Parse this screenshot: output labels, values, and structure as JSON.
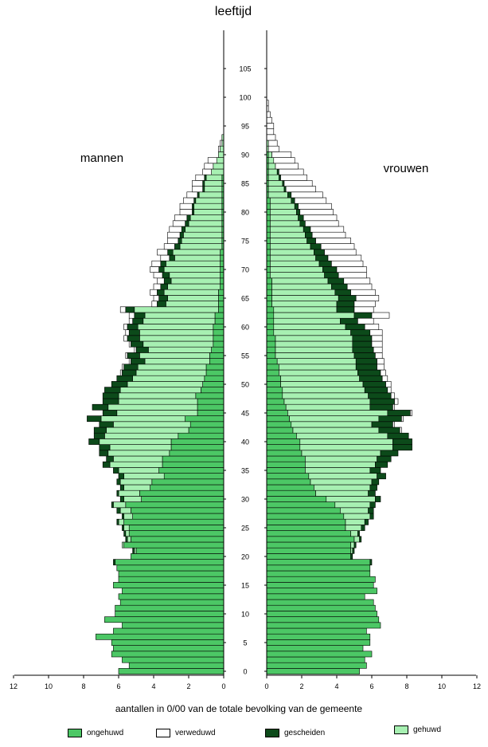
{
  "chart_data": {
    "type": "bar",
    "orientation": "horizontal-mirrored (population pyramid)",
    "title": "leeftijd",
    "xlabel": "aantallen in 0/00 van de totale bevolking van de gemeente",
    "left_label": "mannen",
    "right_label": "vrouwen",
    "xlim": [
      0,
      12
    ],
    "x_ticks": [
      "12",
      "10",
      "8",
      "6",
      "4",
      "2",
      "0",
      "2",
      "4",
      "6",
      "8",
      "10",
      "12"
    ],
    "age_ticks": [
      "0",
      "5",
      "10",
      "15",
      "20",
      "25",
      "30",
      "35",
      "40",
      "45",
      "50",
      "55",
      "60",
      "65",
      "70",
      "75",
      "80",
      "85",
      "90",
      "95",
      "100",
      "105"
    ],
    "categories_order": [
      "ongehuwd",
      "gehuwd",
      "gescheiden",
      "verweduwd"
    ],
    "legend": [
      {
        "key": "ongehuwd",
        "label": "ongehuwd",
        "color": "#4cc765"
      },
      {
        "key": "verweduwd",
        "label": "verweduwd",
        "color": "#ffffff"
      },
      {
        "key": "gescheiden",
        "label": "gescheiden",
        "color": "#0c4a1a"
      },
      {
        "key": "gehuwd",
        "label": "gehuwd",
        "color": "#a7f0b2"
      }
    ],
    "ages": [
      0,
      1,
      2,
      3,
      4,
      5,
      6,
      7,
      8,
      9,
      10,
      11,
      12,
      13,
      14,
      15,
      16,
      17,
      18,
      19,
      20,
      21,
      22,
      23,
      24,
      25,
      26,
      27,
      28,
      29,
      30,
      31,
      32,
      33,
      34,
      35,
      36,
      37,
      38,
      39,
      40,
      41,
      42,
      43,
      44,
      45,
      46,
      47,
      48,
      49,
      50,
      51,
      52,
      53,
      54,
      55,
      56,
      57,
      58,
      59,
      60,
      61,
      62,
      63,
      64,
      65,
      66,
      67,
      68,
      69,
      70,
      71,
      72,
      73,
      74,
      75,
      76,
      77,
      78,
      79,
      80,
      81,
      82,
      83,
      84,
      85,
      86,
      87,
      88,
      89,
      90,
      91,
      92,
      93,
      94,
      95,
      96,
      97,
      98,
      99
    ],
    "men": {
      "ongehuwd": [
        6.0,
        5.4,
        5.8,
        6.4,
        6.3,
        6.4,
        7.3,
        6.3,
        5.8,
        6.8,
        6.2,
        6.2,
        5.9,
        6.0,
        5.8,
        6.3,
        6.0,
        6.0,
        6.1,
        6.2,
        5.3,
        5.0,
        5.7,
        5.3,
        5.4,
        5.4,
        5.7,
        5.2,
        5.3,
        5.6,
        4.7,
        4.8,
        4.2,
        4.1,
        3.4,
        3.7,
        3.5,
        3.5,
        3.1,
        3.0,
        3.0,
        2.6,
        2.0,
        1.9,
        2.2,
        1.5,
        1.5,
        1.5,
        1.6,
        1.3,
        1.2,
        1.1,
        1.0,
        1.0,
        0.8,
        0.8,
        0.7,
        0.6,
        0.6,
        0.6,
        0.6,
        0.5,
        0.5,
        0.3,
        0.3,
        0.3,
        0.3,
        0.2,
        0.2,
        0.2,
        0.2,
        0.2,
        0.2,
        0.2,
        0.1,
        0.1,
        0.1,
        0.1,
        0.1,
        0.1,
        0.1,
        0.1,
        0.1,
        0.1,
        0.1,
        0.1,
        0.1,
        0.0,
        0.0,
        0.0,
        0.0,
        0.0,
        0.0,
        0.0,
        0.0,
        0.0,
        0.0,
        0.0,
        0.0,
        0.0
      ],
      "gehuwd": [
        0.0,
        0.0,
        0.0,
        0.0,
        0.0,
        0.0,
        0.0,
        0.0,
        0.0,
        0.0,
        0.0,
        0.0,
        0.0,
        0.0,
        0.0,
        0.0,
        0.0,
        0.0,
        0.0,
        0.0,
        0.0,
        0.1,
        0.1,
        0.2,
        0.2,
        0.3,
        0.3,
        0.5,
        0.6,
        0.7,
        1.0,
        1.2,
        1.5,
        1.8,
        2.3,
        2.3,
        3.0,
        2.8,
        3.5,
        3.5,
        4.1,
        4.2,
        4.7,
        4.4,
        4.8,
        4.6,
        5.1,
        4.5,
        4.4,
        4.6,
        4.3,
        4.1,
        4.0,
        3.9,
        3.7,
        4.0,
        3.6,
        4.0,
        4.2,
        4.2,
        4.3,
        4.1,
        4.0,
        4.8,
        3.0,
        2.9,
        3.1,
        3.0,
        2.8,
        2.9,
        3.2,
        3.1,
        2.6,
        2.7,
        2.4,
        2.3,
        2.2,
        2.1,
        1.9,
        1.8,
        1.6,
        1.6,
        1.5,
        1.3,
        1.0,
        1.0,
        0.9,
        0.7,
        0.6,
        0.4,
        0.3,
        0.2,
        0.1,
        0.1,
        0.0,
        0.0,
        0.0,
        0.0,
        0.0,
        0.0
      ],
      "gescheiden": [
        0.0,
        0.0,
        0.0,
        0.0,
        0.0,
        0.0,
        0.0,
        0.0,
        0.0,
        0.0,
        0.0,
        0.0,
        0.0,
        0.0,
        0.0,
        0.0,
        0.0,
        0.0,
        0.0,
        0.1,
        0.0,
        0.1,
        0.0,
        0.1,
        0.1,
        0.1,
        0.1,
        0.1,
        0.2,
        0.1,
        0.2,
        0.1,
        0.2,
        0.2,
        0.3,
        0.3,
        0.4,
        0.4,
        0.5,
        0.6,
        0.6,
        0.6,
        0.7,
        0.8,
        0.8,
        0.8,
        0.9,
        0.9,
        0.9,
        0.9,
        0.9,
        0.9,
        0.8,
        0.8,
        0.8,
        0.7,
        0.7,
        0.7,
        0.7,
        0.6,
        0.6,
        0.6,
        0.6,
        0.5,
        0.5,
        0.5,
        0.4,
        0.4,
        0.4,
        0.4,
        0.3,
        0.3,
        0.3,
        0.3,
        0.3,
        0.2,
        0.2,
        0.2,
        0.2,
        0.2,
        0.1,
        0.1,
        0.1,
        0.1,
        0.1,
        0.1,
        0.1,
        0.0,
        0.0,
        0.0,
        0.0,
        0.0,
        0.0,
        0.0,
        0.0,
        0.0,
        0.0,
        0.0,
        0.0,
        0.0
      ],
      "verweduwd": [
        0.0,
        0.0,
        0.0,
        0.0,
        0.0,
        0.0,
        0.0,
        0.0,
        0.0,
        0.0,
        0.0,
        0.0,
        0.0,
        0.0,
        0.0,
        0.0,
        0.0,
        0.0,
        0.0,
        0.0,
        0.0,
        0.0,
        0.0,
        0.0,
        0.0,
        0.0,
        0.0,
        0.0,
        0.0,
        0.0,
        0.0,
        0.0,
        0.0,
        0.0,
        0.0,
        0.0,
        0.0,
        0.0,
        0.0,
        0.0,
        0.0,
        0.0,
        0.0,
        0.0,
        0.0,
        0.0,
        0.0,
        0.0,
        0.0,
        0.0,
        0.0,
        0.0,
        0.1,
        0.1,
        0.1,
        0.1,
        0.1,
        0.1,
        0.2,
        0.2,
        0.2,
        0.2,
        0.3,
        0.3,
        0.3,
        0.3,
        0.4,
        0.4,
        0.4,
        0.5,
        0.5,
        0.5,
        0.5,
        0.6,
        0.6,
        0.6,
        0.7,
        0.7,
        0.7,
        0.7,
        0.7,
        0.7,
        0.6,
        0.6,
        0.6,
        0.6,
        0.5,
        0.5,
        0.5,
        0.5,
        0.0,
        0.1,
        0.1,
        0.0,
        0.0,
        0.0,
        0.0,
        0.0,
        0.0,
        0.0
      ]
    },
    "women": {
      "ongehuwd": [
        5.3,
        5.7,
        5.6,
        6.0,
        5.5,
        5.9,
        5.9,
        5.7,
        6.5,
        6.4,
        6.3,
        6.2,
        6.1,
        5.6,
        6.3,
        6.1,
        6.2,
        5.9,
        5.9,
        5.9,
        4.8,
        4.8,
        4.8,
        5.0,
        4.8,
        4.5,
        4.5,
        4.4,
        4.2,
        3.9,
        3.4,
        2.8,
        2.7,
        2.5,
        2.4,
        2.2,
        2.2,
        2.2,
        2.0,
        1.9,
        1.9,
        1.7,
        1.5,
        1.4,
        1.3,
        1.2,
        1.1,
        1.0,
        0.9,
        0.9,
        0.8,
        0.8,
        0.7,
        0.7,
        0.6,
        0.5,
        0.5,
        0.5,
        0.5,
        0.4,
        0.4,
        0.4,
        0.4,
        0.4,
        0.3,
        0.3,
        0.3,
        0.3,
        0.3,
        0.2,
        0.2,
        0.2,
        0.2,
        0.2,
        0.2,
        0.2,
        0.2,
        0.2,
        0.2,
        0.2,
        0.2,
        0.2,
        0.2,
        0.1,
        0.1,
        0.1,
        0.1,
        0.1,
        0.1,
        0.1,
        0.1,
        0.0,
        0.0,
        0.0,
        0.0,
        0.0,
        0.0,
        0.0,
        0.0,
        0.0
      ],
      "gehuwd": [
        0.0,
        0.0,
        0.0,
        0.0,
        0.0,
        0.0,
        0.0,
        0.0,
        0.0,
        0.0,
        0.0,
        0.0,
        0.0,
        0.0,
        0.0,
        0.0,
        0.0,
        0.0,
        0.0,
        0.0,
        0.0,
        0.1,
        0.2,
        0.3,
        0.4,
        0.9,
        1.1,
        1.5,
        1.6,
        2.0,
        2.8,
        3.0,
        3.2,
        3.5,
        3.9,
        3.7,
        4.0,
        4.1,
        4.5,
        5.3,
        5.3,
        5.2,
        4.9,
        4.6,
        5.1,
        5.7,
        4.8,
        4.9,
        4.9,
        4.7,
        4.7,
        4.5,
        4.5,
        4.4,
        4.5,
        4.5,
        4.4,
        4.4,
        4.4,
        4.4,
        4.1,
        3.8,
        4.6,
        3.6,
        3.7,
        3.8,
        3.6,
        3.4,
        3.2,
        3.1,
        3.0,
        2.8,
        2.6,
        2.5,
        2.3,
        2.1,
        2.0,
        1.9,
        1.7,
        1.6,
        1.5,
        1.4,
        1.2,
        1.1,
        0.9,
        0.8,
        0.6,
        0.5,
        0.4,
        0.3,
        0.2,
        0.1,
        0.1,
        0.0,
        0.0,
        0.0,
        0.0,
        0.0,
        0.0,
        0.0
      ],
      "gescheiden": [
        0.0,
        0.0,
        0.0,
        0.0,
        0.0,
        0.0,
        0.0,
        0.0,
        0.0,
        0.0,
        0.0,
        0.0,
        0.0,
        0.0,
        0.0,
        0.0,
        0.0,
        0.0,
        0.0,
        0.1,
        0.1,
        0.1,
        0.1,
        0.1,
        0.1,
        0.2,
        0.2,
        0.2,
        0.3,
        0.3,
        0.3,
        0.4,
        0.4,
        0.4,
        0.5,
        0.6,
        0.7,
        0.8,
        1.0,
        1.1,
        1.1,
        1.2,
        1.2,
        1.2,
        1.3,
        1.3,
        1.3,
        1.4,
        1.3,
        1.3,
        1.3,
        1.3,
        1.3,
        1.2,
        1.2,
        1.2,
        1.2,
        1.1,
        1.1,
        1.1,
        1.1,
        1.0,
        1.0,
        1.0,
        1.0,
        1.0,
        0.9,
        0.9,
        0.9,
        0.8,
        0.8,
        0.7,
        0.7,
        0.6,
        0.6,
        0.5,
        0.4,
        0.4,
        0.3,
        0.3,
        0.2,
        0.2,
        0.2,
        0.2,
        0.1,
        0.1,
        0.1,
        0.1,
        0.0,
        0.0,
        0.0,
        0.0,
        0.0,
        0.0,
        0.0,
        0.0,
        0.0,
        0.0,
        0.0,
        0.0
      ],
      "verweduwd": [
        0.0,
        0.0,
        0.0,
        0.0,
        0.0,
        0.0,
        0.0,
        0.0,
        0.0,
        0.0,
        0.0,
        0.0,
        0.0,
        0.0,
        0.0,
        0.0,
        0.0,
        0.0,
        0.0,
        0.0,
        0.0,
        0.0,
        0.0,
        0.0,
        0.0,
        0.0,
        0.0,
        0.0,
        0.0,
        0.0,
        0.0,
        0.0,
        0.0,
        0.0,
        0.0,
        0.0,
        0.0,
        0.0,
        0.0,
        0.0,
        0.0,
        0.0,
        0.1,
        0.1,
        0.1,
        0.1,
        0.1,
        0.2,
        0.2,
        0.2,
        0.3,
        0.3,
        0.3,
        0.4,
        0.4,
        0.4,
        0.5,
        0.6,
        0.6,
        0.7,
        0.8,
        0.9,
        1.0,
        1.1,
        1.2,
        1.3,
        1.4,
        1.4,
        1.5,
        1.6,
        1.7,
        1.8,
        1.9,
        1.8,
        1.9,
        2.0,
        1.9,
        1.9,
        1.9,
        1.9,
        1.9,
        1.9,
        1.8,
        1.8,
        1.7,
        1.6,
        1.5,
        1.4,
        1.3,
        1.2,
        1.1,
        0.6,
        0.5,
        0.5,
        0.4,
        0.4,
        0.3,
        0.2,
        0.1,
        0.1
      ]
    }
  }
}
